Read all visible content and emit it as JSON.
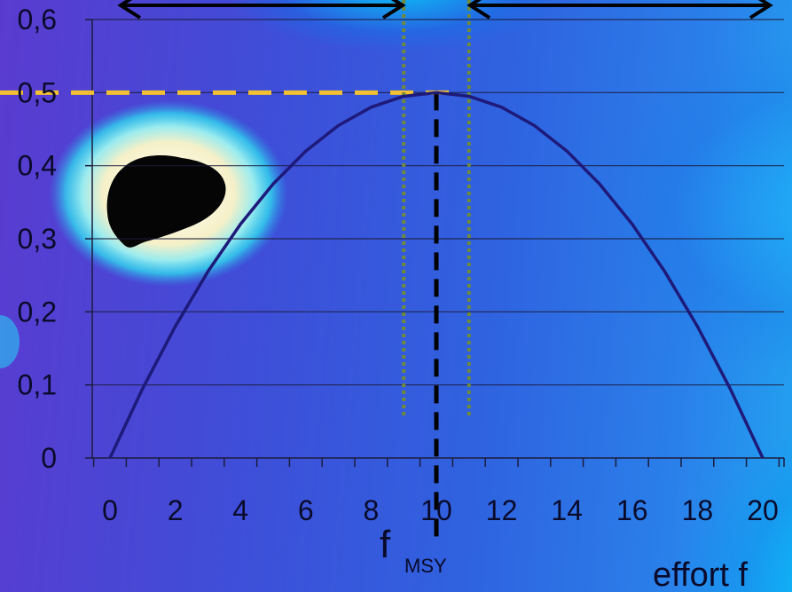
{
  "chart_data": {
    "type": "line",
    "title": "",
    "xlabel": "effort f",
    "ylabel": "",
    "x_ticks": [
      "0",
      "2",
      "4",
      "6",
      "8",
      "10",
      "12",
      "14",
      "16",
      "18",
      "20"
    ],
    "y_ticks": [
      "0",
      "0,1",
      "0,2",
      "0,3",
      "0,4",
      "0,5",
      "0,6"
    ],
    "xlim": [
      0,
      20
    ],
    "ylim": [
      0,
      0.6
    ],
    "grid": "horizontal",
    "series": [
      {
        "color": "#1e1a7a",
        "x": [
          0,
          1,
          2,
          3,
          4,
          5,
          6,
          7,
          8,
          9,
          10,
          11,
          12,
          13,
          14,
          15,
          16,
          17,
          18,
          19,
          20
        ],
        "y": [
          0,
          0.095,
          0.18,
          0.255,
          0.32,
          0.375,
          0.42,
          0.455,
          0.48,
          0.495,
          0.5,
          0.495,
          0.48,
          0.455,
          0.42,
          0.375,
          0.32,
          0.255,
          0.18,
          0.095,
          0
        ]
      }
    ],
    "annotations": {
      "f_msy_label": "f",
      "f_msy_subscript": "MSY",
      "f_msy_x": 10,
      "msy_level_y": 0.5,
      "dotted_lines_x": [
        9,
        11
      ],
      "colors": {
        "msy_level_line": "#f2c030",
        "f_msy_line": "#000000",
        "dotted_lines": "#6f8a3a",
        "arrows": "#000000"
      }
    }
  }
}
